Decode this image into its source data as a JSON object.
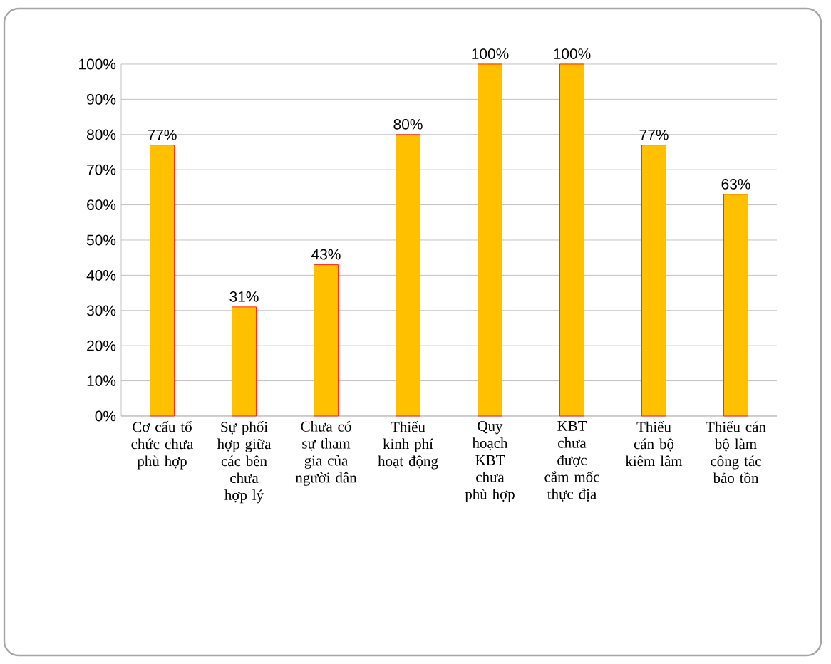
{
  "chart_data": {
    "type": "bar",
    "categories": [
      "Cơ cấu tổ chức chưa phù hợp",
      "Sự phối hợp giữa các bên chưa hợp lý",
      "Chưa có sự tham gia của người dân",
      "Thiếu kinh phí hoạt động",
      "Quy hoạch KBT chưa phù hợp",
      "KBT chưa được cắm mốc thực địa",
      "Thiếu cán bộ kiêm lâm",
      "Thiếu cán bộ làm công tác bảo tồn"
    ],
    "values": [
      77,
      31,
      43,
      80,
      100,
      100,
      77,
      63
    ],
    "value_labels": [
      "77%",
      "31%",
      "43%",
      "80%",
      "100%",
      "100%",
      "77%",
      "63%"
    ],
    "color": "#ffc000",
    "ylim": [
      0,
      100
    ],
    "yticks": [
      {
        "value": 0,
        "label": "0%"
      },
      {
        "value": 10,
        "label": "10%"
      },
      {
        "value": 20,
        "label": "20%"
      },
      {
        "value": 30,
        "label": "30%"
      },
      {
        "value": 40,
        "label": "40%"
      },
      {
        "value": 50,
        "label": "50%"
      },
      {
        "value": 60,
        "label": "60%"
      },
      {
        "value": 70,
        "label": "70%"
      },
      {
        "value": 80,
        "label": "80%"
      },
      {
        "value": 90,
        "label": "90%"
      },
      {
        "value": 100,
        "label": "100%"
      }
    ],
    "grid": "y"
  }
}
